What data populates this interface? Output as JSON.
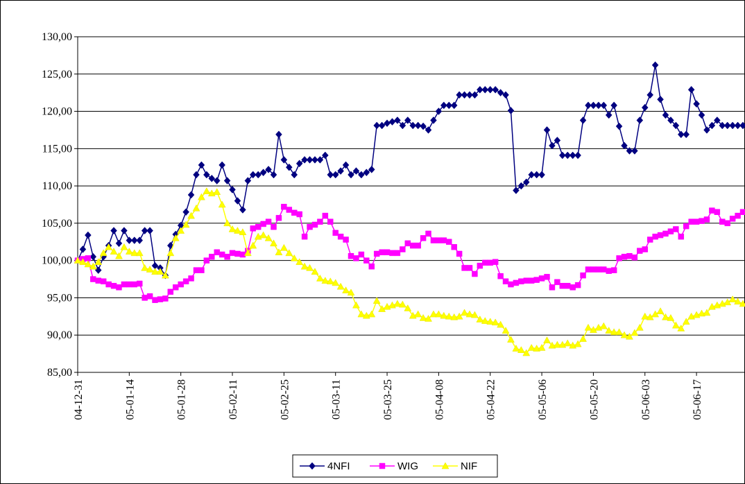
{
  "chart_data": {
    "type": "line",
    "categories": [
      "04-12-31",
      null,
      null,
      null,
      null,
      null,
      null,
      null,
      null,
      null,
      "05-01-14",
      null,
      null,
      null,
      null,
      null,
      null,
      null,
      null,
      null,
      "05-01-28",
      null,
      null,
      null,
      null,
      null,
      null,
      null,
      null,
      null,
      "05-02-11",
      null,
      null,
      null,
      null,
      null,
      null,
      null,
      null,
      null,
      "05-02-25",
      null,
      null,
      null,
      null,
      null,
      null,
      null,
      null,
      null,
      "05-03-11",
      null,
      null,
      null,
      null,
      null,
      null,
      null,
      null,
      null,
      "05-03-25",
      null,
      null,
      null,
      null,
      null,
      null,
      null,
      null,
      null,
      "05-04-08",
      null,
      null,
      null,
      null,
      null,
      null,
      null,
      null,
      null,
      "05-04-22",
      null,
      null,
      null,
      null,
      null,
      null,
      null,
      null,
      null,
      "05-05-06",
      null,
      null,
      null,
      null,
      null,
      null,
      null,
      null,
      null,
      "05-05-20",
      null,
      null,
      null,
      null,
      null,
      null,
      null,
      null,
      null,
      "05-06-03",
      null,
      null,
      null,
      null,
      null,
      null,
      null,
      null,
      null,
      "05-06-17",
      null,
      null,
      null,
      null,
      null,
      null,
      null,
      null,
      null
    ],
    "series": [
      {
        "name": "4NFI",
        "color": "#000080",
        "marker": "diamond",
        "values": [
          100.0,
          101.5,
          103.4,
          100.5,
          98.7,
          100.5,
          102.0,
          104.0,
          102.3,
          104.0,
          102.7,
          102.7,
          102.7,
          104.0,
          104.0,
          99.3,
          99.0,
          98.0,
          102.0,
          103.5,
          104.7,
          106.5,
          108.8,
          111.5,
          112.8,
          111.5,
          111.0,
          110.7,
          112.8,
          110.7,
          109.5,
          108.0,
          106.8,
          110.7,
          111.5,
          111.5,
          111.8,
          112.2,
          111.5,
          116.9,
          113.5,
          112.5,
          111.5,
          113.0,
          113.5,
          113.5,
          113.5,
          113.5,
          114.1,
          111.5,
          111.5,
          112.0,
          112.8,
          111.5,
          112.0,
          111.5,
          111.8,
          112.2,
          118.1,
          118.1,
          118.4,
          118.6,
          118.8,
          118.1,
          118.8,
          118.1,
          118.1,
          118.0,
          117.5,
          118.8,
          120.0,
          120.8,
          120.8,
          120.8,
          122.2,
          122.2,
          122.2,
          122.2,
          122.9,
          122.9,
          122.9,
          122.9,
          122.5,
          122.2,
          120.1,
          109.4,
          110.0,
          110.5,
          111.5,
          111.5,
          111.5,
          117.5,
          115.4,
          116.1,
          114.1,
          114.1,
          114.1,
          114.1,
          118.8,
          120.8,
          120.8,
          120.8,
          120.8,
          119.5,
          120.8,
          118.0,
          115.4,
          114.7,
          114.7,
          118.8,
          120.5,
          122.2,
          126.2,
          121.6,
          119.5,
          118.8,
          118.1,
          116.9,
          116.9,
          122.9,
          121.0,
          119.5,
          117.5,
          118.1,
          118.8,
          118.1,
          118.1,
          118.1,
          118.1,
          118.1
        ]
      },
      {
        "name": "WIG",
        "color": "#ff00ff",
        "marker": "square",
        "values": [
          100.0,
          100.2,
          100.3,
          97.5,
          97.3,
          97.2,
          96.8,
          96.6,
          96.4,
          96.8,
          96.8,
          96.8,
          96.9,
          95.0,
          95.2,
          94.7,
          94.8,
          94.9,
          95.8,
          96.4,
          96.8,
          97.2,
          97.6,
          98.7,
          98.7,
          100.0,
          100.5,
          101.1,
          100.8,
          100.5,
          101.0,
          100.9,
          100.8,
          101.3,
          104.3,
          104.5,
          104.9,
          105.2,
          104.5,
          105.7,
          107.2,
          106.8,
          106.4,
          106.2,
          103.2,
          104.5,
          104.8,
          105.2,
          106.0,
          105.2,
          103.7,
          103.2,
          102.8,
          100.6,
          100.3,
          100.8,
          100.0,
          99.2,
          100.9,
          101.1,
          101.1,
          101.0,
          101.0,
          101.5,
          102.3,
          102.0,
          102.0,
          103.0,
          103.6,
          102.7,
          102.7,
          102.7,
          102.5,
          101.8,
          100.9,
          99.0,
          99.0,
          98.2,
          99.3,
          99.7,
          99.7,
          99.8,
          97.9,
          97.2,
          96.8,
          97.0,
          97.2,
          97.3,
          97.3,
          97.4,
          97.6,
          97.8,
          96.4,
          97.1,
          96.6,
          96.6,
          96.4,
          96.7,
          98.0,
          98.8,
          98.8,
          98.8,
          98.8,
          98.6,
          98.7,
          100.3,
          100.5,
          100.6,
          100.4,
          101.3,
          101.5,
          102.8,
          103.2,
          103.4,
          103.6,
          103.9,
          104.2,
          103.2,
          104.6,
          105.2,
          105.2,
          105.3,
          105.5,
          106.7,
          106.5,
          105.2,
          105.0,
          105.6,
          106.0,
          106.5
        ]
      },
      {
        "name": "NIF",
        "color": "#ffff00",
        "marker": "triangle",
        "values": [
          100.0,
          99.8,
          99.5,
          99.2,
          99.8,
          101.0,
          101.8,
          101.2,
          100.6,
          101.8,
          101.2,
          101.0,
          101.0,
          99.0,
          98.8,
          98.5,
          98.5,
          98.0,
          101.0,
          103.0,
          104.0,
          104.8,
          106.0,
          107.0,
          108.5,
          109.3,
          109.0,
          109.2,
          107.5,
          105.0,
          104.2,
          104.0,
          103.8,
          101.0,
          102.0,
          103.2,
          103.4,
          103.0,
          102.3,
          101.1,
          101.7,
          101.0,
          100.3,
          99.8,
          99.2,
          99.0,
          98.5,
          97.6,
          97.3,
          97.2,
          97.0,
          96.5,
          96.0,
          95.7,
          94.0,
          92.8,
          92.6,
          92.8,
          94.6,
          93.5,
          93.8,
          94.0,
          94.2,
          94.1,
          93.6,
          92.6,
          92.8,
          92.3,
          92.2,
          92.8,
          92.8,
          92.6,
          92.5,
          92.4,
          92.5,
          93.0,
          92.8,
          92.7,
          92.1,
          91.9,
          91.8,
          91.7,
          91.4,
          90.6,
          89.4,
          88.2,
          88.0,
          87.6,
          88.3,
          88.2,
          88.3,
          89.3,
          88.6,
          88.7,
          88.7,
          88.9,
          88.6,
          88.8,
          89.5,
          91.0,
          90.7,
          91.0,
          91.2,
          90.6,
          90.4,
          90.4,
          90.0,
          89.8,
          90.3,
          91.0,
          92.5,
          92.4,
          92.8,
          93.2,
          92.4,
          92.3,
          91.3,
          90.9,
          91.8,
          92.5,
          92.7,
          92.9,
          93.0,
          93.8,
          94.0,
          94.2,
          94.4,
          94.8,
          94.5,
          94.2
        ]
      }
    ],
    "ylim": [
      85,
      130
    ],
    "yticks": [
      {
        "value": 85,
        "label": "85,00"
      },
      {
        "value": 90,
        "label": "90,00"
      },
      {
        "value": 95,
        "label": "95,00"
      },
      {
        "value": 100,
        "label": "100,00"
      },
      {
        "value": 105,
        "label": "105,00"
      },
      {
        "value": 110,
        "label": "110,00"
      },
      {
        "value": 115,
        "label": "115,00"
      },
      {
        "value": 120,
        "label": "120,00"
      },
      {
        "value": 125,
        "label": "125,00"
      },
      {
        "value": 130,
        "label": "130,00"
      }
    ],
    "grid": true,
    "legend": "bottom"
  }
}
